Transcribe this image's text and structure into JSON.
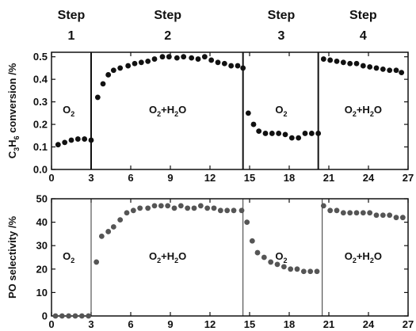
{
  "steps": [
    {
      "title": "Step",
      "number": "1",
      "x_center": 1.5
    },
    {
      "title": "Step",
      "number": "2",
      "x_center": 8.8
    },
    {
      "title": "Step",
      "number": "3",
      "x_center": 17.4
    },
    {
      "title": "Step",
      "number": "4",
      "x_center": 23.6
    }
  ],
  "chart_data": [
    {
      "type": "scatter",
      "panel": "top",
      "xlabel": "",
      "ylabel_parts": [
        "C",
        "3",
        "H",
        "6",
        " conversion /%"
      ],
      "xlim": [
        0,
        27
      ],
      "ylim": [
        0,
        0.52
      ],
      "xticks": [
        "0",
        "3",
        "6",
        "9",
        "12",
        "15",
        "18",
        "21",
        "24",
        "27"
      ],
      "yticks": [
        "0.0",
        "0.1",
        "0.2",
        "0.3",
        "0.4",
        "0.5"
      ],
      "dividers": [
        3.0,
        14.5,
        20.2
      ],
      "color": "#111111",
      "regions": [
        {
          "label_parts": [
            "O",
            "2"
          ],
          "x": 1.3,
          "y": 0.25
        },
        {
          "label_parts": [
            "O",
            "2",
            "+H",
            "2",
            "O"
          ],
          "x": 8.8,
          "y": 0.25
        },
        {
          "label_parts": [
            "O",
            "2"
          ],
          "x": 17.4,
          "y": 0.25
        },
        {
          "label_parts": [
            "O",
            "2",
            "+H",
            "2",
            "O"
          ],
          "x": 23.6,
          "y": 0.25
        }
      ],
      "series": [
        {
          "points": [
            [
              0.5,
              0.11
            ],
            [
              1.0,
              0.12
            ],
            [
              1.5,
              0.13
            ],
            [
              2.0,
              0.135
            ],
            [
              2.5,
              0.135
            ],
            [
              3.0,
              0.13
            ],
            [
              3.5,
              0.32
            ],
            [
              3.9,
              0.38
            ],
            [
              4.3,
              0.42
            ],
            [
              4.7,
              0.44
            ],
            [
              5.2,
              0.45
            ],
            [
              5.8,
              0.46
            ],
            [
              6.3,
              0.47
            ],
            [
              6.8,
              0.475
            ],
            [
              7.3,
              0.48
            ],
            [
              7.8,
              0.49
            ],
            [
              8.4,
              0.5
            ],
            [
              8.9,
              0.5
            ],
            [
              9.5,
              0.495
            ],
            [
              10.0,
              0.5
            ],
            [
              10.6,
              0.495
            ],
            [
              11.1,
              0.49
            ],
            [
              11.6,
              0.5
            ],
            [
              12.1,
              0.485
            ],
            [
              12.6,
              0.475
            ],
            [
              13.1,
              0.47
            ],
            [
              13.6,
              0.46
            ],
            [
              14.1,
              0.46
            ],
            [
              14.5,
              0.45
            ],
            [
              14.9,
              0.25
            ],
            [
              15.3,
              0.2
            ],
            [
              15.7,
              0.17
            ],
            [
              16.2,
              0.16
            ],
            [
              16.7,
              0.16
            ],
            [
              17.2,
              0.16
            ],
            [
              17.7,
              0.155
            ],
            [
              18.2,
              0.14
            ],
            [
              18.7,
              0.14
            ],
            [
              19.2,
              0.16
            ],
            [
              19.7,
              0.16
            ],
            [
              20.2,
              0.16
            ],
            [
              20.6,
              0.49
            ],
            [
              21.1,
              0.485
            ],
            [
              21.6,
              0.48
            ],
            [
              22.1,
              0.475
            ],
            [
              22.6,
              0.47
            ],
            [
              23.1,
              0.47
            ],
            [
              23.6,
              0.46
            ],
            [
              24.1,
              0.455
            ],
            [
              24.6,
              0.45
            ],
            [
              25.1,
              0.445
            ],
            [
              25.6,
              0.44
            ],
            [
              26.1,
              0.44
            ],
            [
              26.5,
              0.43
            ]
          ]
        }
      ]
    },
    {
      "type": "scatter",
      "panel": "bottom",
      "xlabel": "",
      "ylabel_parts": [
        "PO selectivity /%"
      ],
      "xlim": [
        0,
        27
      ],
      "ylim": [
        0,
        50
      ],
      "xticks": [
        "0",
        "3",
        "6",
        "9",
        "12",
        "15",
        "18",
        "21",
        "24",
        "27"
      ],
      "yticks": [
        "0",
        "10",
        "20",
        "30",
        "40",
        "50"
      ],
      "dividers": [
        3.0,
        14.5,
        20.5
      ],
      "color": "#555555",
      "regions": [
        {
          "label_parts": [
            "O",
            "2"
          ],
          "x": 1.3,
          "y": 24
        },
        {
          "label_parts": [
            "O",
            "2",
            "+H",
            "2",
            "O"
          ],
          "x": 8.8,
          "y": 24
        },
        {
          "label_parts": [
            "O",
            "2"
          ],
          "x": 17.4,
          "y": 24
        },
        {
          "label_parts": [
            "O",
            "2",
            "+H",
            "2",
            "O"
          ],
          "x": 23.6,
          "y": 24
        }
      ],
      "series": [
        {
          "points": [
            [
              0.3,
              0
            ],
            [
              0.8,
              0
            ],
            [
              1.3,
              0
            ],
            [
              1.8,
              0
            ],
            [
              2.3,
              0
            ],
            [
              2.8,
              0
            ],
            [
              3.4,
              23
            ],
            [
              3.8,
              34
            ],
            [
              4.3,
              36
            ],
            [
              4.7,
              38
            ],
            [
              5.2,
              41
            ],
            [
              5.7,
              44
            ],
            [
              6.2,
              45
            ],
            [
              6.7,
              46
            ],
            [
              7.3,
              46
            ],
            [
              7.8,
              47
            ],
            [
              8.3,
              47
            ],
            [
              8.8,
              47
            ],
            [
              9.3,
              46
            ],
            [
              9.8,
              47
            ],
            [
              10.3,
              46
            ],
            [
              10.8,
              46
            ],
            [
              11.3,
              47
            ],
            [
              11.8,
              46
            ],
            [
              12.3,
              46
            ],
            [
              12.8,
              45
            ],
            [
              13.3,
              45
            ],
            [
              13.8,
              45
            ],
            [
              14.4,
              45
            ],
            [
              14.8,
              40
            ],
            [
              15.2,
              32
            ],
            [
              15.6,
              27
            ],
            [
              16.1,
              25
            ],
            [
              16.6,
              23
            ],
            [
              17.1,
              22
            ],
            [
              17.6,
              21
            ],
            [
              18.1,
              20
            ],
            [
              18.6,
              20
            ],
            [
              19.1,
              19
            ],
            [
              19.6,
              19
            ],
            [
              20.1,
              19
            ],
            [
              20.6,
              47
            ],
            [
              21.1,
              45
            ],
            [
              21.6,
              45
            ],
            [
              22.1,
              44
            ],
            [
              22.6,
              44
            ],
            [
              23.1,
              44
            ],
            [
              23.6,
              44
            ],
            [
              24.1,
              44
            ],
            [
              24.6,
              43
            ],
            [
              25.1,
              43
            ],
            [
              25.6,
              43
            ],
            [
              26.1,
              42
            ],
            [
              26.6,
              42
            ]
          ]
        }
      ]
    }
  ]
}
